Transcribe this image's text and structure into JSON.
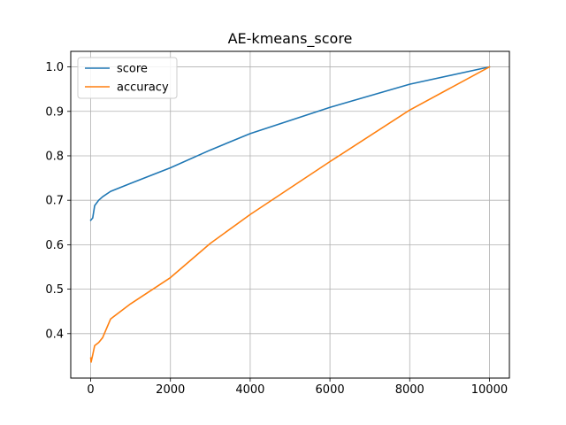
{
  "chart_data": {
    "type": "line",
    "title": "AE-kmeans_score",
    "xlabel": "",
    "ylabel": "",
    "xlim": [
      -500,
      10500
    ],
    "ylim": [
      0.3,
      1.035
    ],
    "x_ticks": [
      0,
      2000,
      4000,
      6000,
      8000,
      10000
    ],
    "x_tick_labels": [
      "0",
      "2000",
      "4000",
      "6000",
      "8000",
      "10000"
    ],
    "y_ticks": [
      0.4,
      0.5,
      0.6,
      0.7,
      0.8,
      0.9,
      1.0
    ],
    "y_tick_labels": [
      "0.4",
      "0.5",
      "0.6",
      "0.7",
      "0.8",
      "0.9",
      "1.0"
    ],
    "grid": true,
    "legend_position": "top-left",
    "series": [
      {
        "name": "score",
        "color": "#1f77b4",
        "x": [
          1,
          10,
          50,
          100,
          200,
          300,
          500,
          1000,
          2000,
          3000,
          4000,
          6000,
          8000,
          10000
        ],
        "y": [
          0.655,
          0.656,
          0.66,
          0.688,
          0.7,
          0.708,
          0.72,
          0.738,
          0.773,
          0.813,
          0.85,
          0.909,
          0.961,
          1.0
        ]
      },
      {
        "name": "accuracy",
        "color": "#ff7f0e",
        "x": [
          1,
          10,
          50,
          100,
          200,
          300,
          500,
          1000,
          2000,
          3000,
          4000,
          6000,
          8000,
          10000
        ],
        "y": [
          0.345,
          0.336,
          0.352,
          0.373,
          0.38,
          0.391,
          0.433,
          0.467,
          0.526,
          0.603,
          0.668,
          0.787,
          0.903,
          1.0
        ]
      }
    ]
  }
}
